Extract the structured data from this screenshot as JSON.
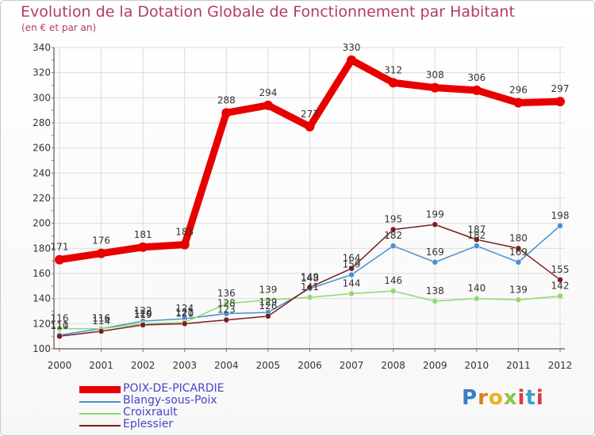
{
  "title": "Evolution de la Dotation Globale de Fonctionnement par Habitant",
  "subtitle": "(en € et par an)",
  "logo_text": "Proxiti",
  "colors": {
    "title": "#b33a6e",
    "legend_text": "#4646c8",
    "grid": "#dcdcdc",
    "axis": "#333333"
  },
  "chart_data": {
    "type": "line",
    "title": "Evolution de la Dotation Globale de Fonctionnement par Habitant",
    "subtitle": "(en € et par an)",
    "xlabel": "",
    "ylabel": "",
    "ylim": [
      100,
      340
    ],
    "yticks": [
      100,
      120,
      140,
      160,
      180,
      200,
      220,
      240,
      260,
      280,
      300,
      320,
      340
    ],
    "categories": [
      "2000",
      "2001",
      "2002",
      "2003",
      "2004",
      "2005",
      "2006",
      "2007",
      "2008",
      "2009",
      "2010",
      "2011",
      "2012"
    ],
    "legend_position": "bottom-left",
    "series": [
      {
        "name": "POIX-DE-PICARDIE",
        "color": "#e80000",
        "values": [
          171,
          176,
          181,
          183,
          288,
          294,
          277,
          330,
          312,
          308,
          306,
          296,
          297
        ],
        "labels": [
          "171",
          "176",
          "181",
          "183",
          "288",
          "294",
          "277",
          "330",
          "312",
          "308",
          "306",
          "296",
          "297"
        ]
      },
      {
        "name": "Blangy-sous-Poix",
        "color": "#4a90d0",
        "values": [
          111,
          116,
          122,
          124,
          128,
          129,
          148,
          159,
          182,
          169,
          182,
          169,
          198
        ],
        "labels": [
          "111",
          "116",
          "122",
          "124",
          "128",
          "129",
          "148",
          "159",
          "182",
          "169",
          "182",
          "169",
          "198"
        ]
      },
      {
        "name": "Croixrault",
        "color": "#8fd870",
        "values": [
          116,
          116,
          120,
          121,
          136,
          139,
          141,
          144,
          146,
          138,
          140,
          139,
          142
        ],
        "labels": [
          "116",
          "116",
          "120",
          "121",
          "136",
          "139",
          "141",
          "144",
          "146",
          "138",
          "140",
          "139",
          "142"
        ]
      },
      {
        "name": "Eplessier",
        "color": "#7a1e1e",
        "values": [
          110,
          114,
          119,
          120,
          123,
          126,
          149,
          164,
          195,
          199,
          187,
          180,
          155
        ],
        "labels": [
          "110",
          "114",
          "119",
          "120",
          "123",
          "126",
          "149",
          "164",
          "195",
          "199",
          "187",
          "180",
          "155"
        ]
      }
    ]
  }
}
